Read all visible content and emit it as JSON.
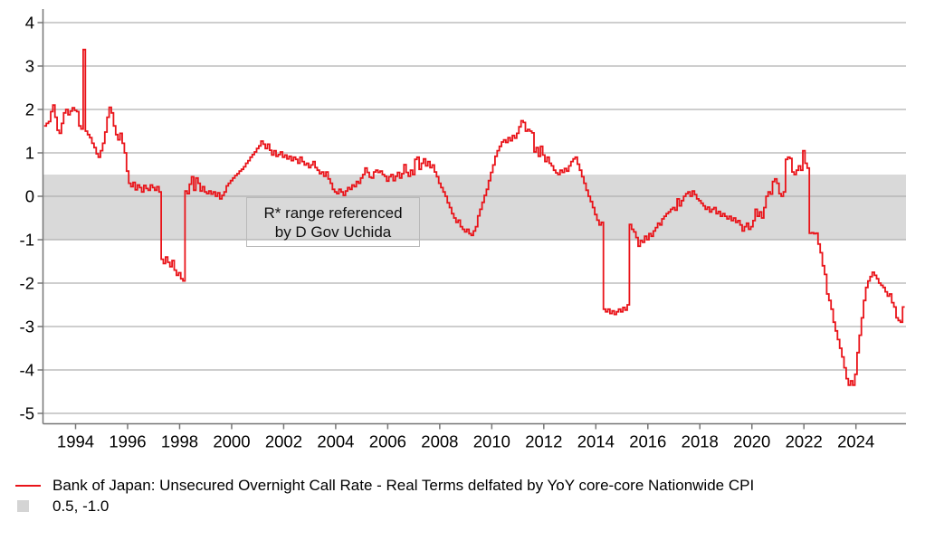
{
  "chart_data": {
    "type": "line",
    "title": "",
    "xlabel": "",
    "ylabel": "",
    "grid": true,
    "x_axis": {
      "ticks": [
        1994,
        1996,
        1998,
        2000,
        2002,
        2004,
        2006,
        2008,
        2010,
        2012,
        2014,
        2016,
        2018,
        2020,
        2022,
        2024
      ],
      "lim": [
        1992.75,
        2025.93
      ]
    },
    "y_axis": {
      "ticks": [
        4,
        3,
        2,
        1,
        0,
        -1,
        -2,
        -3,
        -4,
        -5
      ],
      "lim": [
        -5.2,
        4.3
      ]
    },
    "band": {
      "label": "0.5, -1.0",
      "top": 0.5,
      "bottom": -1.0,
      "color": "#d9d9d9"
    },
    "annotation": {
      "line1": "R* range referenced",
      "line2": "by D Gov Uchida"
    },
    "colors": {
      "grid": "#b0b0b0",
      "spine": "#767676",
      "text": "#000000",
      "annotation_border": "#b9b9b9"
    },
    "legend_position": "bottom-left",
    "series": [
      {
        "name": "Bank of Japan: Unsecured Overnight Call Rate - Real Terms delfated by YoY core-core Nationwide CPI",
        "color": "#e91319",
        "x_start": 1992.7917,
        "x_step": 0.0833333,
        "frequency": "monthly",
        "values": [
          1.62,
          1.68,
          1.72,
          1.95,
          2.1,
          1.82,
          1.52,
          1.45,
          1.68,
          1.92,
          2.0,
          1.88,
          1.96,
          2.04,
          1.98,
          1.95,
          1.62,
          1.55,
          3.38,
          1.5,
          1.42,
          1.35,
          1.22,
          1.12,
          0.98,
          0.9,
          1.05,
          1.22,
          1.48,
          1.82,
          2.05,
          1.92,
          1.62,
          1.42,
          1.3,
          1.45,
          1.22,
          1.0,
          0.58,
          0.3,
          0.22,
          0.32,
          0.15,
          0.26,
          0.2,
          0.1,
          0.25,
          0.18,
          0.14,
          0.26,
          0.2,
          0.14,
          0.22,
          0.1,
          -1.45,
          -1.55,
          -1.4,
          -1.52,
          -1.62,
          -1.48,
          -1.7,
          -1.82,
          -1.76,
          -1.9,
          -1.95,
          0.12,
          0.06,
          0.28,
          0.45,
          0.14,
          0.42,
          0.3,
          0.12,
          0.22,
          0.1,
          0.06,
          0.12,
          0.05,
          0.1,
          0.0,
          0.08,
          -0.06,
          0.02,
          0.1,
          0.24,
          0.3,
          0.36,
          0.42,
          0.48,
          0.52,
          0.58,
          0.62,
          0.68,
          0.76,
          0.82,
          0.9,
          0.96,
          1.02,
          1.1,
          1.16,
          1.27,
          1.2,
          1.1,
          1.2,
          1.06,
          0.95,
          1.05,
          0.92,
          0.96,
          1.02,
          0.9,
          0.95,
          0.86,
          0.92,
          0.82,
          0.9,
          0.85,
          0.76,
          0.9,
          0.8,
          0.72,
          0.76,
          0.66,
          0.72,
          0.8,
          0.66,
          0.6,
          0.52,
          0.56,
          0.46,
          0.56,
          0.4,
          0.3,
          0.16,
          0.1,
          0.06,
          0.16,
          0.1,
          0.02,
          0.12,
          0.2,
          0.16,
          0.26,
          0.22,
          0.34,
          0.3,
          0.42,
          0.5,
          0.65,
          0.55,
          0.44,
          0.42,
          0.56,
          0.6,
          0.55,
          0.58,
          0.5,
          0.46,
          0.35,
          0.45,
          0.5,
          0.36,
          0.46,
          0.55,
          0.42,
          0.52,
          0.73,
          0.55,
          0.46,
          0.6,
          0.5,
          0.85,
          0.9,
          0.62,
          0.76,
          0.86,
          0.7,
          0.8,
          0.66,
          0.72,
          0.56,
          0.45,
          0.3,
          0.2,
          0.1,
          0.0,
          -0.15,
          -0.26,
          -0.4,
          -0.5,
          -0.6,
          -0.55,
          -0.7,
          -0.76,
          -0.82,
          -0.76,
          -0.86,
          -0.9,
          -0.8,
          -0.7,
          -0.45,
          -0.3,
          -0.14,
          0.02,
          0.16,
          0.36,
          0.55,
          0.72,
          0.92,
          1.05,
          1.15,
          1.25,
          1.3,
          1.24,
          1.35,
          1.28,
          1.4,
          1.34,
          1.45,
          1.6,
          1.74,
          1.7,
          1.5,
          1.54,
          1.5,
          1.46,
          1.02,
          1.12,
          0.92,
          1.15,
          0.95,
          0.8,
          0.9,
          0.76,
          0.7,
          0.6,
          0.54,
          0.5,
          0.6,
          0.55,
          0.64,
          0.58,
          0.7,
          0.8,
          0.86,
          0.9,
          0.74,
          0.6,
          0.45,
          0.3,
          0.14,
          0.0,
          -0.12,
          -0.26,
          -0.42,
          -0.55,
          -0.66,
          -0.6,
          -2.6,
          -2.66,
          -2.6,
          -2.7,
          -2.64,
          -2.72,
          -2.66,
          -2.6,
          -2.66,
          -2.56,
          -2.62,
          -2.5,
          -0.65,
          -0.76,
          -0.82,
          -0.95,
          -1.15,
          -1.02,
          -1.06,
          -0.92,
          -1.0,
          -0.86,
          -0.92,
          -0.8,
          -0.72,
          -0.62,
          -0.66,
          -0.52,
          -0.46,
          -0.4,
          -0.36,
          -0.3,
          -0.26,
          -0.32,
          -0.06,
          -0.22,
          -0.1,
          0.0,
          0.06,
          0.1,
          0.0,
          0.12,
          0.04,
          -0.06,
          -0.1,
          -0.16,
          -0.22,
          -0.3,
          -0.25,
          -0.36,
          -0.3,
          -0.26,
          -0.4,
          -0.35,
          -0.46,
          -0.4,
          -0.46,
          -0.52,
          -0.46,
          -0.56,
          -0.5,
          -0.6,
          -0.56,
          -0.66,
          -0.8,
          -0.7,
          -0.62,
          -0.76,
          -0.7,
          -0.56,
          -0.3,
          -0.46,
          -0.36,
          -0.5,
          -0.26,
          0.0,
          0.1,
          0.05,
          0.34,
          0.4,
          0.3,
          0.06,
          0.0,
          0.1,
          0.85,
          0.9,
          0.87,
          0.56,
          0.5,
          0.6,
          0.7,
          0.6,
          1.05,
          0.76,
          0.65,
          -0.85,
          -0.84,
          -0.86,
          -0.85,
          -1.1,
          -1.3,
          -1.6,
          -1.8,
          -2.25,
          -2.4,
          -2.6,
          -2.9,
          -3.1,
          -3.3,
          -3.5,
          -3.7,
          -3.95,
          -4.2,
          -4.35,
          -4.25,
          -4.35,
          -4.1,
          -3.6,
          -3.2,
          -2.8,
          -2.4,
          -2.1,
          -1.95,
          -1.85,
          -1.75,
          -1.82,
          -1.9,
          -2.0,
          -2.05,
          -2.1,
          -2.2,
          -2.3,
          -2.25,
          -2.45,
          -2.55,
          -2.8,
          -2.86,
          -2.9,
          -2.55
        ]
      }
    ]
  }
}
